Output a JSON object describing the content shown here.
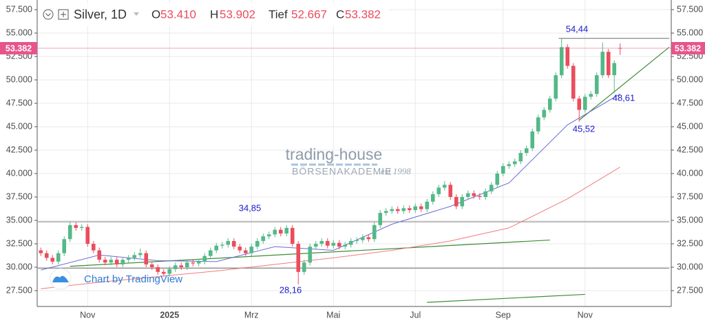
{
  "chart_data": {
    "type": "candlestick",
    "title": "Silver, 1D",
    "ohlc_header": [
      {
        "name": "O",
        "value": 53.41,
        "label": "53.410"
      },
      {
        "name": "H",
        "value": 53.902,
        "label": "53.902"
      },
      {
        "name": "Tief",
        "value": 52.667,
        "label": "52.667"
      },
      {
        "name": "C",
        "value": 53.382,
        "label": "53.382"
      }
    ],
    "categories": [
      null,
      null,
      null,
      null,
      null,
      null,
      null,
      null,
      "Nov",
      null,
      null,
      null,
      null,
      null,
      null,
      null,
      null,
      null,
      null,
      null,
      null,
      null,
      "2025",
      null,
      null,
      null,
      null,
      null,
      null,
      null,
      null,
      null,
      null,
      null,
      null,
      null,
      "Mrz",
      null,
      null,
      null,
      null,
      null,
      null,
      null,
      null,
      null,
      null,
      null,
      null,
      null,
      "Mai",
      null,
      null,
      null,
      null,
      null,
      null,
      null,
      null,
      null,
      null,
      null,
      null,
      null,
      "Jul",
      null,
      null,
      null,
      null,
      null,
      null,
      null,
      null,
      null,
      null,
      null,
      null,
      null,
      null,
      "Sep",
      null,
      null,
      null,
      null,
      null,
      null,
      null,
      null,
      null,
      null,
      null,
      null,
      null,
      "Nov",
      null,
      null,
      null,
      null,
      null,
      null
    ],
    "open": [
      31.8,
      31.5,
      31.0,
      30.6,
      31.5,
      33.0,
      34.5,
      34.2,
      34.3,
      32.5,
      31.8,
      30.8,
      30.5,
      30.8,
      30.3,
      30.8,
      31.0,
      31.3,
      31.5,
      30.3,
      30.0,
      29.5,
      29.3,
      29.8,
      30.2,
      30.0,
      30.5,
      30.4,
      30.6,
      31.2,
      31.8,
      32.3,
      32.4,
      32.8,
      32.2,
      31.8,
      31.5,
      32.2,
      32.8,
      33.3,
      33.5,
      34.0,
      33.6,
      34.2,
      32.5,
      29.5,
      30.5,
      32.2,
      32.5,
      32.8,
      32.3,
      32.6,
      32.2,
      32.4,
      32.8,
      32.9,
      33.2,
      33.0,
      34.5,
      35.8,
      36.0,
      36.2,
      36.0,
      36.3,
      36.1,
      36.5,
      36.2,
      37.0,
      37.8,
      38.5,
      38.8,
      37.5,
      36.5,
      37.5,
      37.9,
      37.6,
      37.5,
      38.1,
      38.8,
      40.0,
      40.8,
      41.0,
      41.3,
      42.2,
      42.7,
      44.5,
      46.0,
      46.8,
      48.0,
      50.5,
      53.5,
      51.5,
      48.0,
      46.8,
      48.2,
      48.5,
      50.5,
      53.0,
      50.5,
      53.41
    ],
    "high": [
      32.1,
      31.8,
      31.3,
      31.8,
      33.3,
      34.85,
      34.8,
      34.6,
      34.6,
      32.8,
      32.1,
      31.1,
      31.1,
      31.1,
      31.1,
      31.3,
      31.6,
      32.0,
      31.8,
      30.6,
      30.3,
      29.8,
      30.1,
      30.5,
      30.5,
      30.8,
      30.8,
      30.9,
      31.5,
      32.1,
      32.6,
      32.7,
      33.1,
      33.1,
      32.5,
      32.1,
      32.5,
      33.1,
      33.6,
      33.8,
      34.3,
      34.3,
      34.5,
      34.5,
      32.8,
      30.8,
      32.5,
      32.8,
      33.1,
      33.1,
      32.9,
      32.9,
      32.7,
      33.1,
      33.2,
      33.5,
      33.5,
      34.8,
      36.1,
      36.3,
      36.5,
      36.5,
      36.6,
      36.6,
      36.8,
      36.8,
      37.3,
      38.1,
      38.8,
      39.2,
      39.1,
      37.8,
      37.8,
      38.2,
      38.2,
      37.9,
      38.4,
      39.1,
      40.3,
      41.1,
      41.3,
      41.6,
      42.5,
      43.0,
      44.8,
      46.3,
      47.1,
      48.3,
      50.8,
      54.44,
      53.8,
      51.8,
      48.3,
      48.5,
      48.8,
      50.8,
      54.0,
      53.3,
      52.1,
      53.902
    ],
    "low": [
      31.2,
      30.7,
      30.3,
      30.3,
      31.2,
      32.7,
      33.9,
      33.9,
      32.2,
      31.5,
      30.5,
      30.2,
      30.2,
      30.0,
      30.0,
      30.5,
      30.7,
      31.0,
      30.0,
      29.7,
      29.2,
      29.0,
      29.0,
      29.5,
      29.7,
      29.7,
      30.1,
      30.1,
      30.3,
      30.9,
      31.5,
      32.0,
      32.1,
      31.9,
      31.5,
      31.2,
      31.2,
      31.9,
      32.5,
      33.0,
      33.2,
      33.3,
      33.3,
      32.2,
      28.16,
      29.2,
      30.2,
      31.9,
      32.2,
      32.0,
      32.0,
      31.9,
      31.9,
      32.1,
      32.5,
      32.6,
      32.7,
      32.7,
      34.2,
      35.5,
      35.7,
      35.7,
      35.7,
      35.8,
      35.8,
      35.9,
      35.9,
      36.7,
      37.5,
      38.2,
      37.2,
      36.2,
      36.2,
      37.2,
      37.3,
      37.2,
      37.2,
      37.8,
      38.5,
      39.7,
      40.5,
      40.7,
      41.0,
      41.9,
      42.4,
      44.2,
      45.7,
      46.5,
      47.7,
      50.2,
      51.2,
      47.7,
      45.52,
      46.5,
      47.9,
      48.2,
      50.2,
      50.2,
      48.61,
      52.667
    ],
    "close": [
      31.5,
      31.0,
      30.6,
      31.5,
      33.0,
      34.5,
      34.2,
      34.3,
      32.5,
      31.8,
      30.8,
      30.5,
      30.8,
      30.3,
      30.8,
      31.0,
      31.3,
      31.5,
      30.3,
      30.0,
      29.5,
      29.3,
      29.8,
      30.2,
      30.0,
      30.5,
      30.4,
      30.6,
      31.2,
      31.8,
      32.3,
      32.4,
      32.8,
      32.2,
      31.8,
      31.5,
      32.2,
      32.8,
      33.3,
      33.5,
      34.0,
      33.6,
      34.2,
      32.5,
      29.5,
      30.5,
      32.2,
      32.5,
      32.8,
      32.3,
      32.6,
      32.2,
      32.4,
      32.8,
      32.9,
      33.2,
      33.0,
      34.5,
      35.8,
      36.0,
      36.2,
      36.0,
      36.3,
      36.1,
      36.5,
      36.2,
      37.0,
      37.8,
      38.5,
      38.8,
      37.5,
      36.5,
      37.5,
      37.9,
      37.6,
      37.5,
      38.1,
      38.8,
      40.0,
      40.8,
      41.0,
      41.3,
      42.2,
      42.7,
      44.5,
      46.0,
      46.8,
      48.0,
      50.5,
      53.5,
      51.5,
      48.0,
      46.8,
      48.2,
      48.5,
      50.5,
      53.0,
      50.5,
      51.8,
      53.382
    ],
    "up_color": "#53b987",
    "down_color": "#eb4d5c",
    "price_line_color": "#e7548b",
    "series": [
      {
        "color": "#6a6ad8",
        "x": [
          0,
          10,
          20,
          30,
          40,
          50,
          60,
          70,
          80,
          90,
          99
        ],
        "values": [
          29.7,
          31.3,
          30.7,
          30.6,
          32.2,
          31.8,
          34.6,
          36.5,
          39.0,
          45.2,
          48.5
        ]
      },
      {
        "color": "#f07b7b",
        "x": [
          0,
          10,
          20,
          30,
          40,
          50,
          60,
          70,
          80,
          90,
          99
        ],
        "values": [
          27.7,
          28.4,
          29.0,
          29.6,
          30.3,
          31.0,
          31.8,
          32.8,
          34.2,
          37.3,
          40.7
        ]
      }
    ],
    "lines": [
      {
        "color": "#8a8a8a",
        "x": [
          -0.5,
          107.4
        ],
        "values": [
          34.85,
          34.85
        ]
      },
      {
        "color": "#8a8a8a",
        "x": [
          -0.5,
          107.4
        ],
        "values": [
          29.9,
          29.9
        ]
      },
      {
        "color": "#8a8a8a",
        "x": [
          88.5,
          107.4
        ],
        "values": [
          54.44,
          54.44
        ]
      },
      {
        "color": "#3d8b37",
        "x": [
          5,
          87
        ],
        "values": [
          30.1,
          32.9
        ]
      },
      {
        "color": "#3d8b37",
        "x": [
          66,
          93
        ],
        "values": [
          26.25,
          27.1
        ]
      },
      {
        "color": "#3d8b37",
        "x": [
          92,
          107.4
        ],
        "values": [
          45.7,
          53.5
        ]
      }
    ],
    "annotations": [
      "34,85",
      "28,16",
      "54,44",
      "45,52",
      "48,61"
    ],
    "annotation_color": "#1a1ad0",
    "watermark": {
      "brand": "trading-house",
      "sub": "BÖRSENAKADEMIE",
      "since": "est 1998"
    },
    "credit": "Chart by TradingView",
    "ylim": [
      25.81,
      58.53
    ],
    "yticks": [
      {
        "value": 27.5,
        "label": "27.500"
      },
      {
        "value": 30,
        "label": "30.000"
      },
      {
        "value": 32.5,
        "label": "32.500"
      },
      {
        "value": 35,
        "label": "35.000"
      },
      {
        "value": 37.5,
        "label": "37.500"
      },
      {
        "value": 40,
        "label": "40.000"
      },
      {
        "value": 42.5,
        "label": "42.500"
      },
      {
        "value": 45,
        "label": "45.000"
      },
      {
        "value": 47.5,
        "label": "47.500"
      },
      {
        "value": 50,
        "label": "50.000"
      },
      {
        "value": 52.5,
        "label": "52.500"
      },
      {
        "value": 55,
        "label": "55.000"
      },
      {
        "value": 57.5,
        "label": "57.500"
      }
    ],
    "grid": true
  }
}
